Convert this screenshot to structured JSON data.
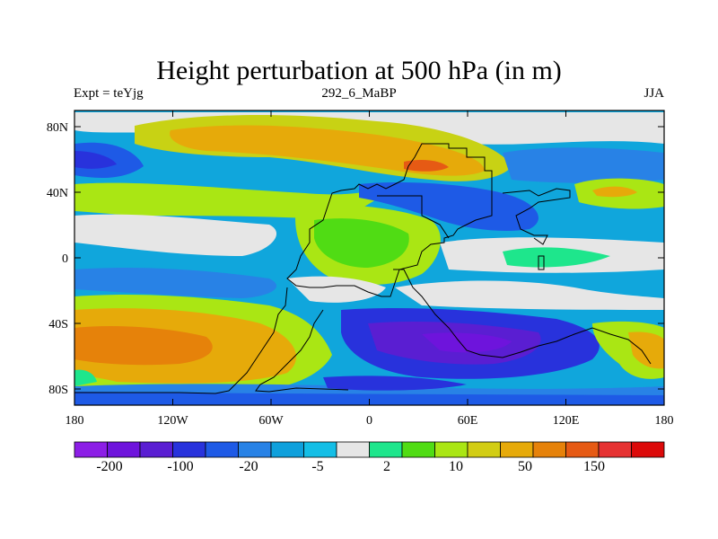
{
  "title": "Height perturbation at 500 hPa (in m)",
  "subtitle_left": "Expt = teYjg",
  "subtitle_center": "292_6_MaBP",
  "subtitle_right": "JJA",
  "y_ticks": [
    "80N",
    "40N",
    "0",
    "40S",
    "80S"
  ],
  "x_ticks": [
    "180",
    "120W",
    "60W",
    "0",
    "60E",
    "120E",
    "180"
  ],
  "colorbar": {
    "colors": [
      "#8c1ee6",
      "#6e14dc",
      "#5a1ed2",
      "#2832dc",
      "#1e5ae6",
      "#2882e6",
      "#0fa0dc",
      "#14bee6",
      "#e6e6e6",
      "#1ee68c",
      "#50dc14",
      "#aae614",
      "#d2cd14",
      "#e6aa0a",
      "#e6820a",
      "#e65a14",
      "#e63232",
      "#dc0a0a"
    ],
    "labels": [
      "-200",
      "-100",
      "-20",
      "-5",
      "2",
      "10",
      "50",
      "150"
    ]
  },
  "colors": {
    "ocean_base": "#00a0d2",
    "coastline": "#000000"
  }
}
